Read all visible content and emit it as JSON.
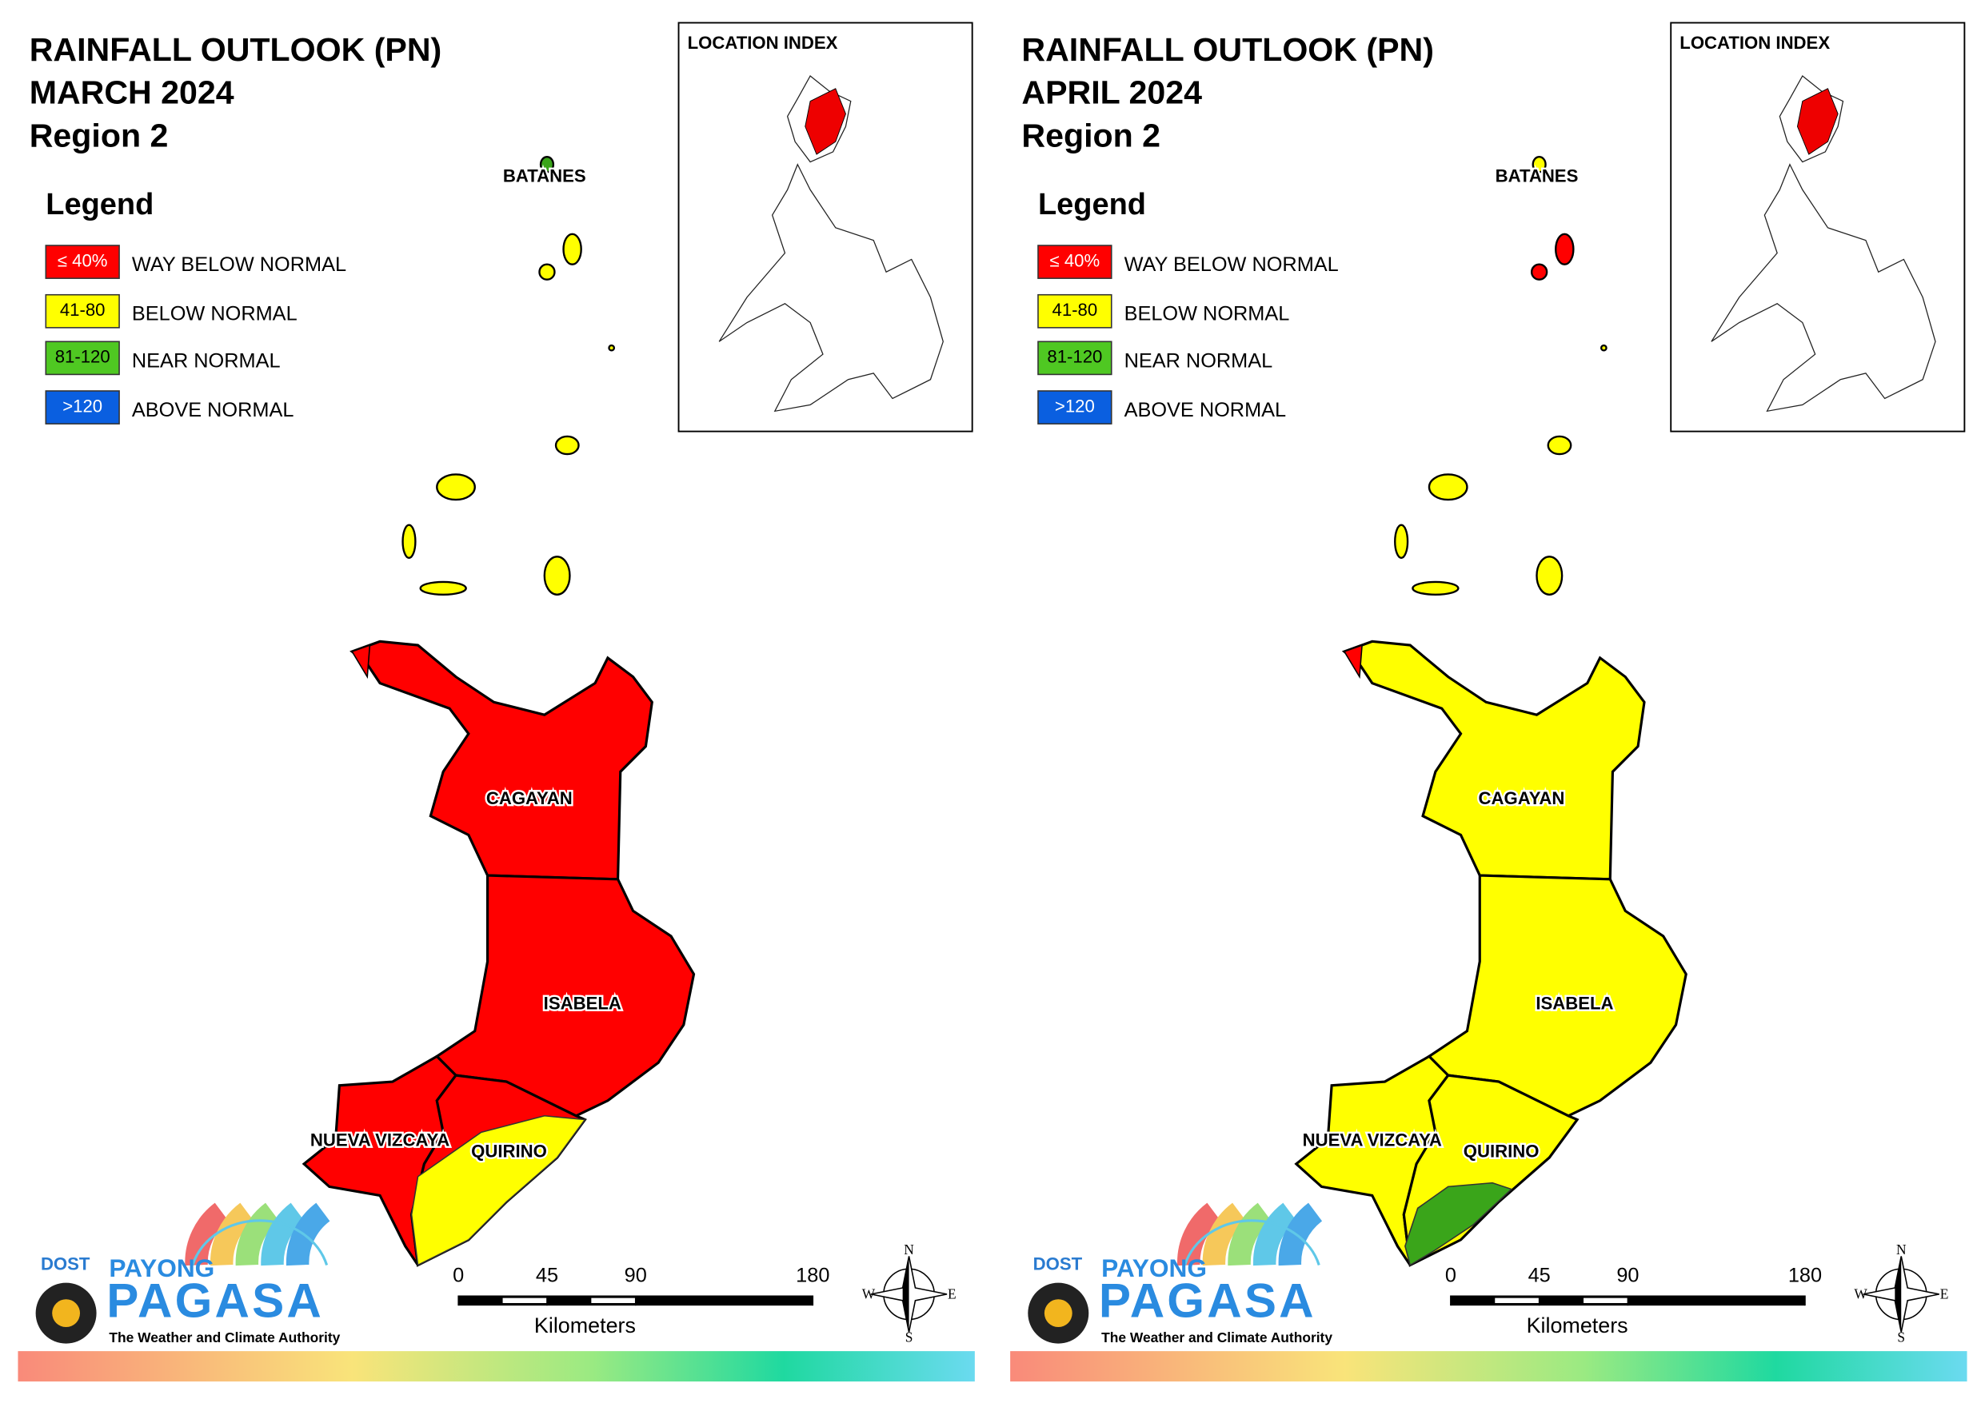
{
  "panels": [
    {
      "title": [
        "RAINFALL OUTLOOK (PN)",
        "MARCH 2024",
        "Region 2"
      ],
      "location_index": "LOCATION INDEX",
      "legend": {
        "title": "Legend",
        "items": [
          {
            "label": "≤ 40%",
            "description": "WAY BELOW NORMAL",
            "color": "#ff0000"
          },
          {
            "label": "41-80",
            "description": "BELOW NORMAL",
            "color": "#ffff00"
          },
          {
            "label": "81-120",
            "description": "NEAR NORMAL",
            "color": "#4fc822"
          },
          {
            "label": ">120",
            "description": "ABOVE NORMAL",
            "color": "#0a5fe0"
          }
        ]
      },
      "provinces": [
        {
          "label": "BATANES",
          "color": "#3aa51a"
        },
        {
          "label": "CAGAYAN",
          "color": "#ff0000"
        },
        {
          "label": "ISABELA",
          "color": "#ff0000"
        },
        {
          "label": "NUEVA VIZCAYA",
          "color": "#ff0000"
        },
        {
          "label": "QUIRINO",
          "color": "#ff0000"
        }
      ],
      "islands_color": "#ffff00",
      "north_islands_color": "#ffff00",
      "zone_color": "#ffff00",
      "tip_color": "#ff0000",
      "scale": {
        "ticks": [
          0,
          45,
          90,
          180
        ],
        "unit": "Kilometers"
      },
      "compass": [
        "N",
        "E",
        "S",
        "W"
      ],
      "logo": {
        "agency": "DOST",
        "name_top": "PAYONG",
        "name": "PAGASA",
        "tagline": "The Weather and Climate Authority"
      }
    },
    {
      "title": [
        "RAINFALL OUTLOOK (PN)",
        "APRIL 2024",
        "Region 2"
      ],
      "location_index": "LOCATION INDEX",
      "legend": {
        "title": "Legend",
        "items": [
          {
            "label": "≤ 40%",
            "description": "WAY BELOW NORMAL",
            "color": "#ff0000"
          },
          {
            "label": "41-80",
            "description": "BELOW NORMAL",
            "color": "#ffff00"
          },
          {
            "label": "81-120",
            "description": "NEAR NORMAL",
            "color": "#4fc822"
          },
          {
            "label": ">120",
            "description": "ABOVE NORMAL",
            "color": "#0a5fe0"
          }
        ]
      },
      "provinces": [
        {
          "label": "BATANES",
          "color": "#ffff00"
        },
        {
          "label": "CAGAYAN",
          "color": "#ffff00"
        },
        {
          "label": "ISABELA",
          "color": "#ffff00"
        },
        {
          "label": "NUEVA VIZCAYA",
          "color": "#ffff00"
        },
        {
          "label": "QUIRINO",
          "color": "#ffff00"
        }
      ],
      "islands_color": "#ffff00",
      "north_islands_color": "#ff0000",
      "zone_color": "#3aa51a",
      "tip_color": "#ff0000",
      "scale": {
        "ticks": [
          0,
          45,
          90,
          180
        ],
        "unit": "Kilometers"
      },
      "compass": [
        "N",
        "E",
        "S",
        "W"
      ],
      "logo": {
        "agency": "DOST",
        "name_top": "PAYONG",
        "name": "PAGASA",
        "tagline": "The Weather and Climate Authority"
      }
    }
  ]
}
